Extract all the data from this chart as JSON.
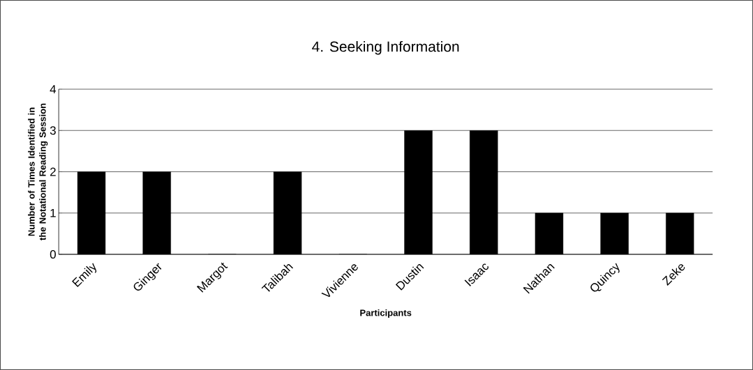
{
  "chart_data": {
    "type": "bar",
    "title": "4. Seeking Information",
    "xlabel": "Participants",
    "ylabel": "Number of Times Identified in the Notational Reading Session",
    "categories": [
      "Emily",
      "Ginger",
      "Margot",
      "Talibah",
      "Vivienne",
      "Dustin",
      "Isaac",
      "Nathan",
      "Quincy",
      "Zeke"
    ],
    "values": [
      2,
      2,
      0,
      2,
      0,
      3,
      3,
      1,
      1,
      1
    ],
    "color": "#000000",
    "ylim": [
      0,
      4
    ],
    "yticks": [
      0,
      1,
      2,
      3,
      4
    ],
    "grid": "y"
  }
}
